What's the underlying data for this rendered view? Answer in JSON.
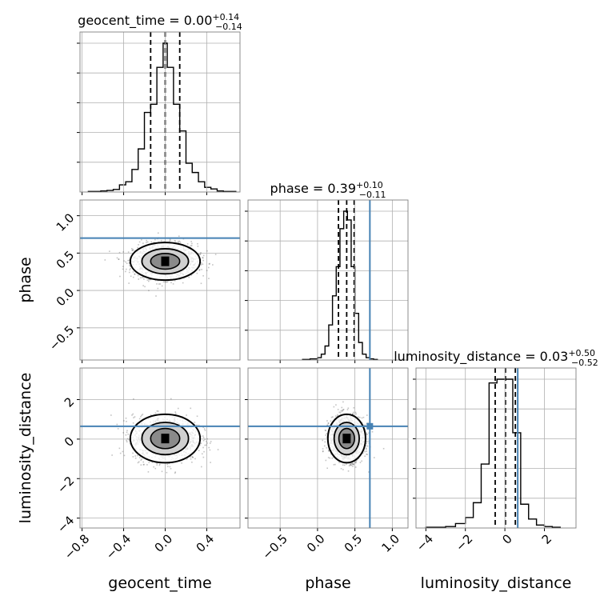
{
  "colors": {
    "truth": "#4682b4",
    "scatter": "#555555",
    "grid": "#b0b0b0",
    "contour": "#000000"
  },
  "chart_data": {
    "type": "corner",
    "parameters": [
      "geocent_time",
      "phase",
      "luminosity_distance"
    ],
    "truths": {
      "geocent_time": null,
      "phase": 0.7,
      "luminosity_distance": 0.65
    },
    "grid": true,
    "panels": {
      "geocent_time": {
        "title": {
          "base": "geocent_time = 0.00",
          "sup": "+0.14",
          "sub": "−0.14"
        },
        "median": 0.0,
        "q_low": -0.14,
        "q_high": 0.14,
        "xlim": [
          -0.82,
          0.72
        ],
        "bin_edges": [
          -0.74,
          -0.68,
          -0.62,
          -0.56,
          -0.5,
          -0.44,
          -0.38,
          -0.32,
          -0.26,
          -0.2,
          -0.14,
          -0.08,
          -0.02,
          0.0,
          0.02,
          0.08,
          0.14,
          0.2,
          0.26,
          0.32,
          0.38,
          0.44,
          0.5,
          0.56,
          0.62,
          0.68
        ],
        "counts": [
          1,
          1,
          2,
          3,
          5,
          14,
          20,
          44,
          84,
          155,
          171,
          243,
          290,
          290,
          243,
          171,
          119,
          56,
          38,
          20,
          9,
          6,
          2,
          1,
          1
        ]
      },
      "phase": {
        "title": {
          "base": "phase = 0.39",
          "sup": "+0.10",
          "sub": "−0.11"
        },
        "median": 0.39,
        "q_low": 0.28,
        "q_high": 0.49,
        "xlim": [
          -0.93,
          1.21
        ],
        "bin_edges": [
          -0.2,
          -0.1,
          0.0,
          0.05,
          0.1,
          0.15,
          0.2,
          0.25,
          0.3,
          0.35,
          0.4,
          0.45,
          0.5,
          0.55,
          0.6,
          0.65,
          0.7,
          0.75,
          0.8
        ],
        "counts": [
          1,
          2,
          4,
          10,
          24,
          60,
          110,
          160,
          225,
          255,
          240,
          160,
          80,
          30,
          10,
          4,
          2,
          1
        ]
      },
      "luminosity_distance": {
        "title": {
          "base": "luminosity_distance = 0.03",
          "sup": "+0.50",
          "sub": "−0.52"
        },
        "median": 0.03,
        "q_low": -0.49,
        "q_high": 0.53,
        "xlim": [
          -4.5,
          3.6
        ],
        "bin_edges": [
          -4.0,
          -3.5,
          -3.0,
          -2.5,
          -2.0,
          -1.6,
          -1.2,
          -0.8,
          -0.4,
          0.0,
          0.4,
          0.8,
          1.2,
          1.6,
          2.0,
          2.4,
          2.8
        ],
        "counts": [
          1,
          1,
          2,
          6,
          14,
          34,
          86,
          195,
          200,
          200,
          128,
          32,
          12,
          4,
          2,
          1
        ]
      }
    },
    "tick_labels": {
      "geocent_time": [
        "−0.8",
        "−0.4",
        "0.0",
        "0.4"
      ],
      "phase": [
        "−0.5",
        "0.0",
        "0.5",
        "1.0"
      ],
      "luminosity_distance": [
        "−4",
        "−2",
        "0",
        "2"
      ]
    },
    "tick_values": {
      "geocent_time": [
        -0.8,
        -0.4,
        0.0,
        0.4
      ],
      "phase": [
        -0.5,
        0.0,
        0.5,
        1.0
      ],
      "luminosity_distance": [
        -4,
        -2,
        0,
        2
      ]
    },
    "phase_yticks": [
      "−0.5",
      "0.0",
      "0.5",
      "1.0"
    ],
    "phase_ytick_values": [
      -0.5,
      0.0,
      0.5,
      1.0
    ],
    "phase_ylim": [
      -0.93,
      1.21
    ],
    "ld_yticks": [
      "−4",
      "−2",
      "0",
      "2"
    ],
    "ld_ytick_values": [
      -4,
      -2,
      0,
      2
    ],
    "ld_ylim": [
      -4.5,
      3.6
    ],
    "contours": {
      "geocent_time_vs_phase": {
        "center": [
          0.0,
          0.39
        ],
        "sigma": [
          0.14,
          0.105
        ],
        "levels": [
          1.0,
          1.6,
          2.4
        ]
      },
      "geocent_time_vs_luminosity_distance": {
        "center": [
          0.0,
          0.03
        ],
        "sigma": [
          0.14,
          0.51
        ],
        "levels": [
          1.0,
          1.6,
          2.4
        ]
      },
      "phase_vs_luminosity_distance": {
        "center": [
          0.39,
          0.03
        ],
        "sigma": [
          0.105,
          0.51
        ],
        "levels": [
          1.0,
          1.6,
          2.4
        ]
      }
    }
  }
}
